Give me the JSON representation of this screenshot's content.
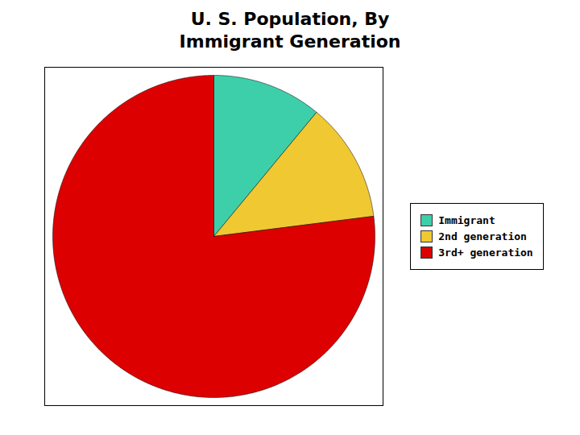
{
  "chart_data": {
    "type": "pie",
    "title": "U. S. Population, By\nImmigrant Generation",
    "categories": [
      "Immigrant",
      "2nd generation",
      "3rd+ generation"
    ],
    "values": [
      11,
      12,
      77
    ],
    "colors": [
      "#3dcfaa",
      "#f0c832",
      "#dd0000"
    ],
    "legend": "right"
  }
}
